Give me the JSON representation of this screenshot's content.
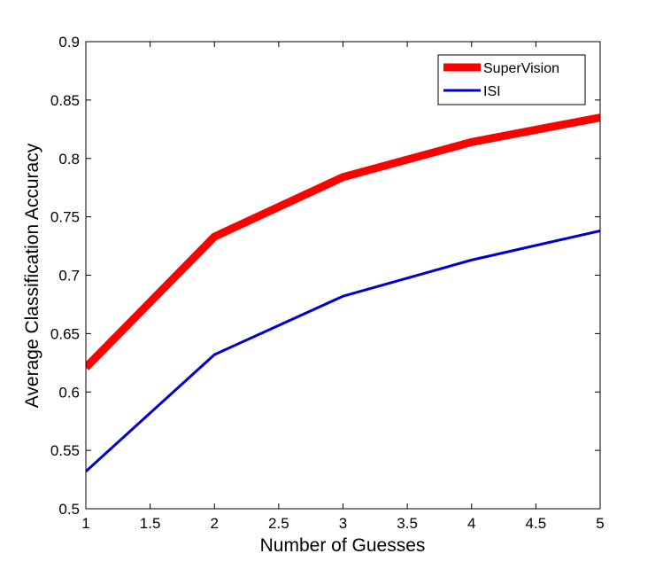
{
  "chart_data": {
    "type": "line",
    "title": "",
    "xlabel": "Number of Guesses",
    "ylabel": "Average Classification Accuracy",
    "xlim": [
      1,
      5
    ],
    "ylim": [
      0.5,
      0.9
    ],
    "x_ticks": [
      "1",
      "1.5",
      "2",
      "2.5",
      "3",
      "3.5",
      "4",
      "4.5",
      "5"
    ],
    "y_ticks": [
      "0.5",
      "0.55",
      "0.6",
      "0.65",
      "0.7",
      "0.75",
      "0.8",
      "0.85",
      "0.9"
    ],
    "grid": false,
    "legend_position": "top-right",
    "x": [
      1,
      2,
      3,
      4,
      5
    ],
    "series": [
      {
        "name": "SuperVision",
        "color": "#ff0000",
        "values": [
          0.621,
          0.733,
          0.784,
          0.814,
          0.835
        ]
      },
      {
        "name": "ISI",
        "color": "#0000cc",
        "values": [
          0.532,
          0.632,
          0.682,
          0.713,
          0.738
        ]
      }
    ]
  }
}
